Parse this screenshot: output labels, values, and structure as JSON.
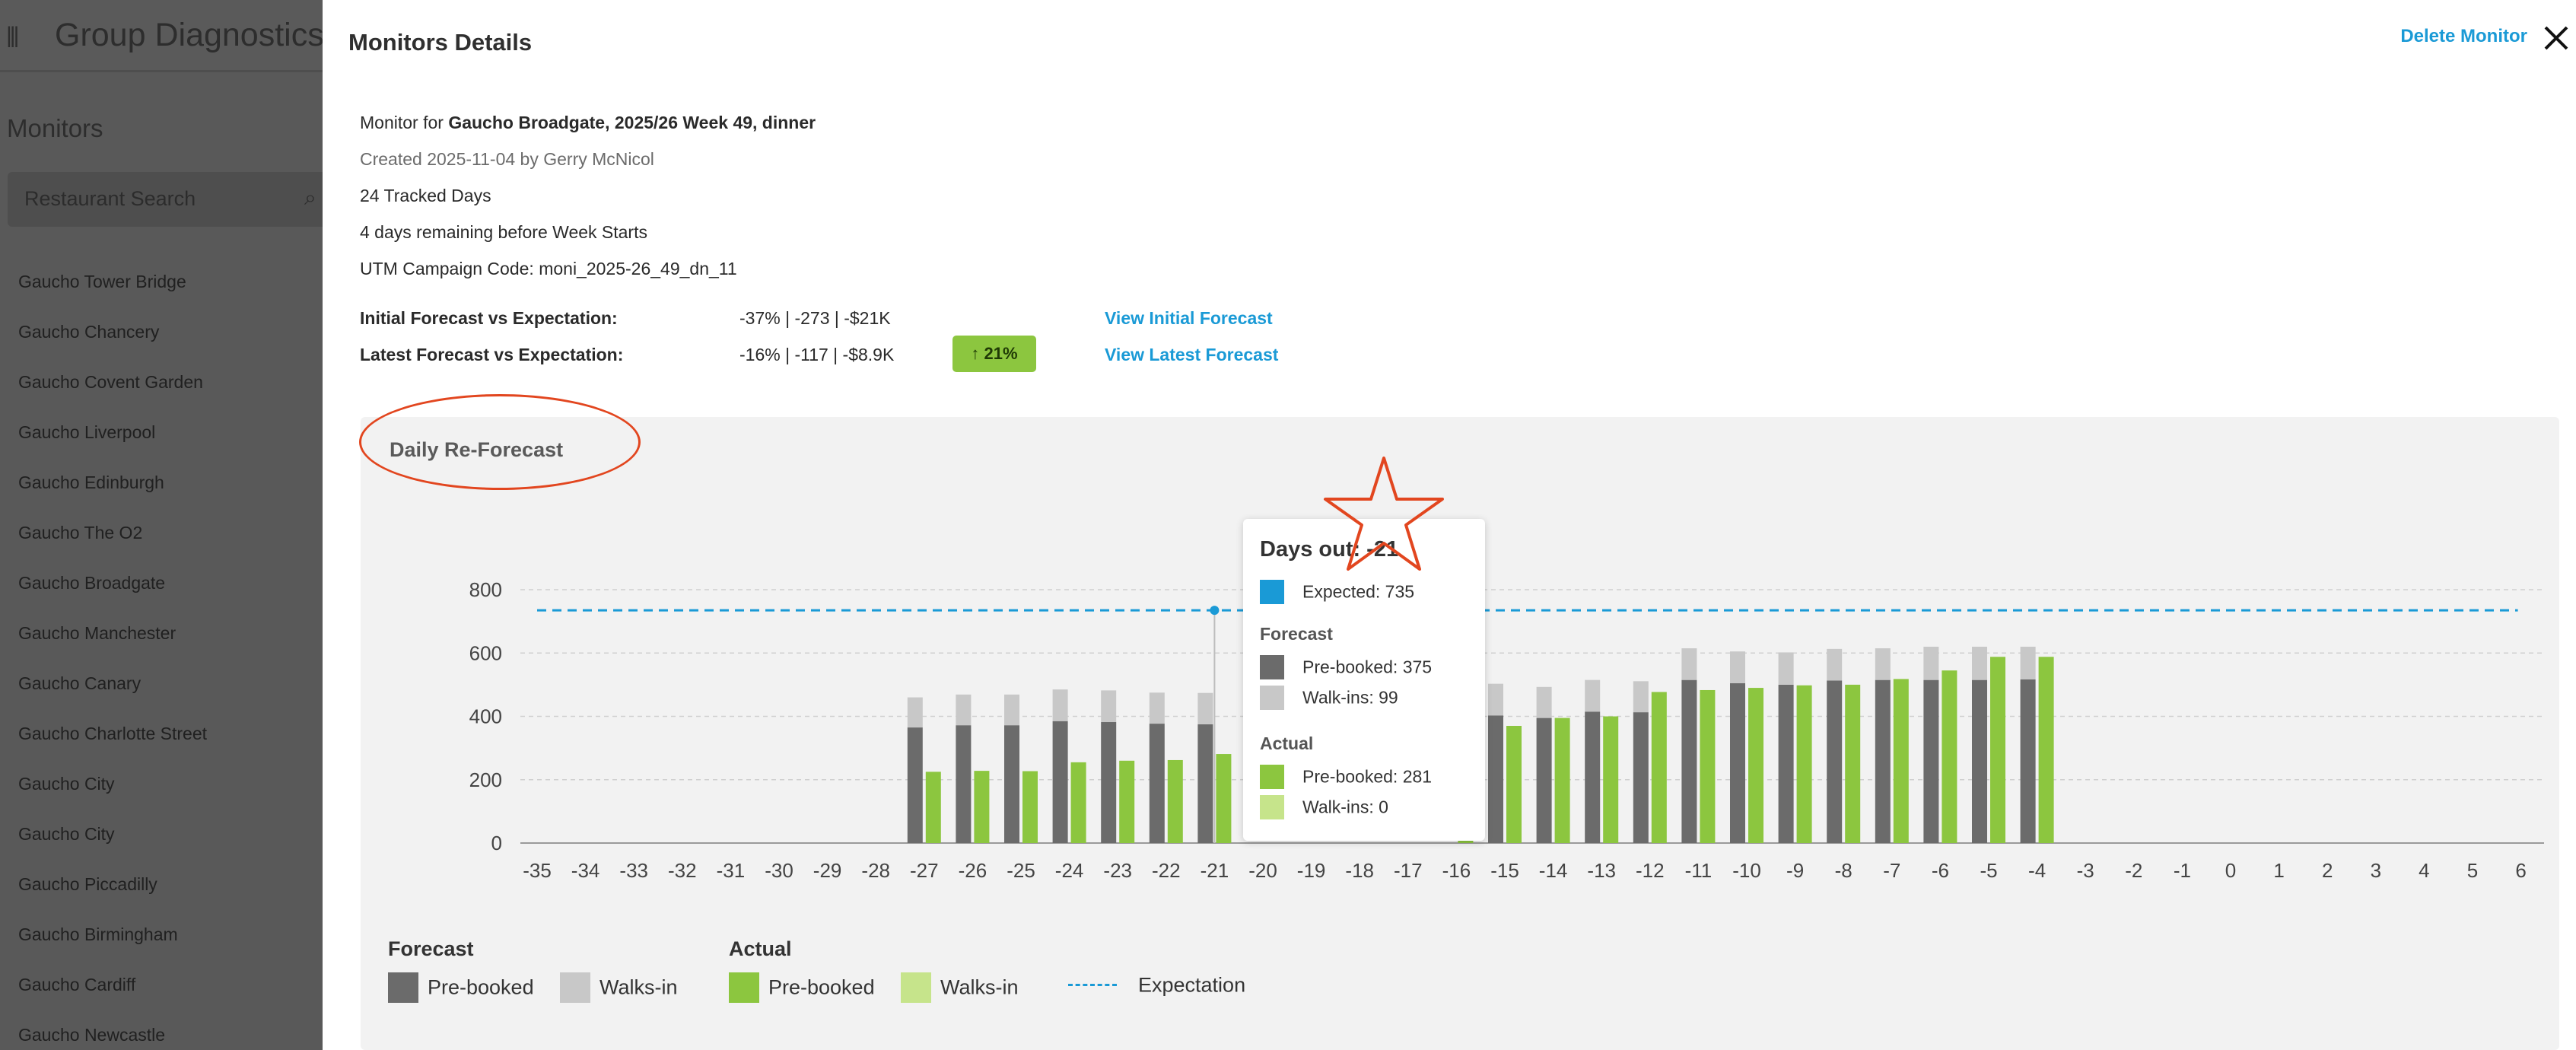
{
  "background_app": {
    "title": "Group Diagnostics",
    "section": "Monitors",
    "search_placeholder": "Restaurant Search",
    "restaurants": [
      "Gaucho Tower Bridge",
      "Gaucho Chancery",
      "Gaucho Covent Garden",
      "Gaucho Liverpool",
      "Gaucho Edinburgh",
      "Gaucho The O2",
      "Gaucho Broadgate",
      "Gaucho Manchester",
      "Gaucho Canary",
      "Gaucho Charlotte Street",
      "Gaucho City",
      "Gaucho City",
      "Gaucho Piccadilly",
      "Gaucho Birmingham",
      "Gaucho Cardiff",
      "Gaucho Newcastle"
    ]
  },
  "modal": {
    "title": "Monitors Details",
    "delete_label": "Delete Monitor",
    "monitor_prefix": "Monitor for ",
    "monitor_name": "Gaucho Broadgate, 2025/26 Week 49, dinner",
    "created": "Created 2025-11-04 by Gerry McNicol",
    "tracked_days": "24 Tracked Days",
    "days_remaining": "4 days remaining before Week Starts",
    "utm": "UTM Campaign Code: moni_2025-26_49_dn_11",
    "initial_label": "Initial Forecast vs Expectation:",
    "initial_value": "-37% | -273 | -$21K",
    "initial_link": "View Initial Forecast",
    "latest_label": "Latest Forecast vs Expectation:",
    "latest_value": "-16% | -117 | -$8.9K",
    "latest_badge": "↑ 21%",
    "latest_link": "View Latest Forecast"
  },
  "panel": {
    "title": "Daily Re-Forecast"
  },
  "tooltip": {
    "title": "Days out: -21",
    "expected": "Expected: 735",
    "forecast_heading": "Forecast",
    "f_prebooked": "Pre-booked: 375",
    "f_walkins": "Walk-ins: 99",
    "actual_heading": "Actual",
    "a_prebooked": "Pre-booked: 281",
    "a_walkins": "Walk-ins: 0"
  },
  "legend": {
    "forecast_heading": "Forecast",
    "forecast_prebooked": "Pre-booked",
    "forecast_walkins": "Walks-in",
    "actual_heading": "Actual",
    "actual_prebooked": "Pre-booked",
    "actual_walkins": "Walks-in",
    "expectation": "Expectation"
  },
  "colors": {
    "forecast_prebooked": "#6b6b6b",
    "forecast_walkins": "#c8c8c8",
    "actual_prebooked": "#8cc63f",
    "actual_walkins": "#c6e48b",
    "expectation": "#1a9ad6",
    "annotation": "#e2461f"
  },
  "chart_data": {
    "type": "bar",
    "x": [
      -35,
      -34,
      -33,
      -32,
      -31,
      -30,
      -29,
      -28,
      -27,
      -26,
      -25,
      -24,
      -23,
      -22,
      -21,
      -20,
      -19,
      -18,
      -17,
      -16,
      -15,
      -14,
      -13,
      -12,
      -11,
      -10,
      -9,
      -8,
      -7,
      -6,
      -5,
      -4,
      -3,
      -2,
      -1,
      0,
      1,
      2,
      3,
      4,
      5,
      6
    ],
    "ylim": [
      0,
      800
    ],
    "yticks": [
      0,
      200,
      400,
      600,
      800
    ],
    "expectation": 735,
    "series": [
      {
        "name": "Forecast Pre-booked",
        "stack": "forecast",
        "values": [
          null,
          null,
          null,
          null,
          null,
          null,
          null,
          null,
          365,
          372,
          372,
          385,
          382,
          377,
          375,
          null,
          null,
          null,
          null,
          null,
          403,
          395,
          415,
          413,
          515,
          505,
          500,
          513,
          515,
          515,
          515,
          517,
          null,
          null,
          null,
          null,
          null,
          null,
          null,
          null,
          null,
          null
        ]
      },
      {
        "name": "Forecast Walks-in",
        "stack": "forecast",
        "values": [
          null,
          null,
          null,
          null,
          null,
          null,
          null,
          null,
          95,
          97,
          97,
          100,
          100,
          98,
          99,
          null,
          null,
          null,
          null,
          null,
          100,
          98,
          100,
          98,
          100,
          100,
          102,
          100,
          100,
          105,
          105,
          103,
          null,
          null,
          null,
          null,
          null,
          null,
          null,
          null,
          null,
          null
        ]
      },
      {
        "name": "Actual Pre-booked",
        "stack": "actual",
        "values": [
          null,
          null,
          null,
          null,
          null,
          null,
          null,
          null,
          225,
          228,
          227,
          255,
          260,
          262,
          281,
          null,
          null,
          null,
          null,
          370,
          370,
          395,
          400,
          477,
          483,
          490,
          498,
          500,
          518,
          545,
          588,
          588,
          null,
          null,
          null,
          null,
          null,
          null,
          null,
          null,
          null,
          null
        ]
      },
      {
        "name": "Actual Walks-in",
        "stack": "actual",
        "values": [
          null,
          null,
          null,
          null,
          null,
          null,
          null,
          null,
          0,
          0,
          0,
          0,
          0,
          0,
          0,
          null,
          null,
          null,
          null,
          0,
          0,
          0,
          0,
          0,
          0,
          0,
          0,
          0,
          0,
          0,
          0,
          0,
          null,
          null,
          null,
          null,
          null,
          null,
          null,
          null,
          null,
          null
        ]
      }
    ]
  }
}
